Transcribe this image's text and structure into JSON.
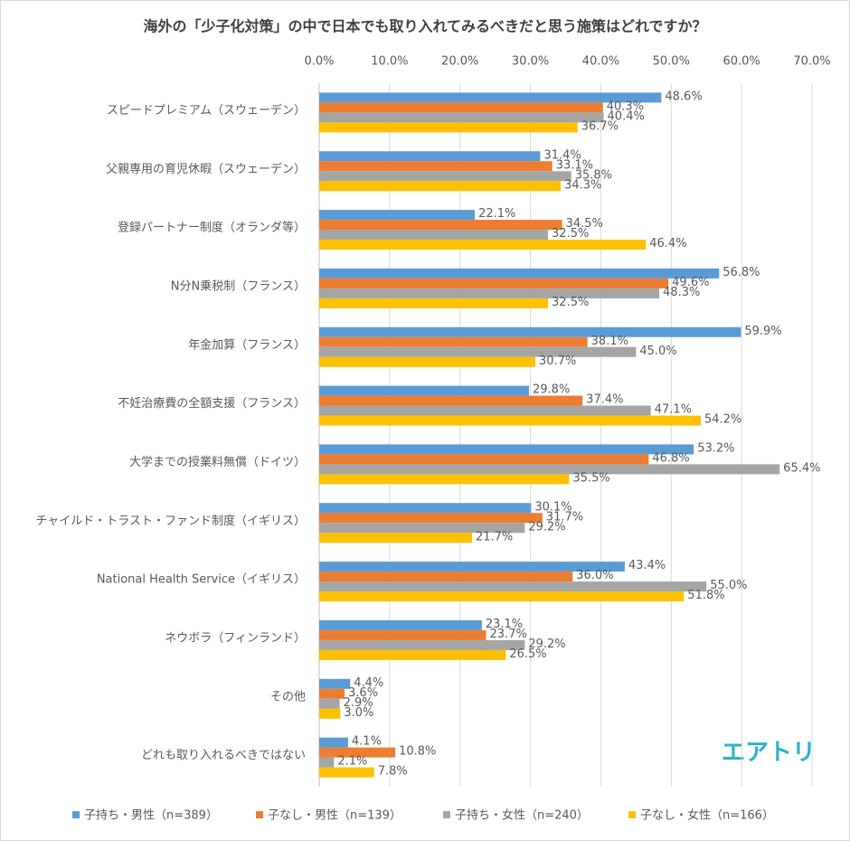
{
  "chart_data": {
    "type": "bar",
    "orientation": "horizontal",
    "title": "海外の「少子化対策」の中で日本でも取り入れてみるべきだと思う施策はどれですか？",
    "categories": [
      "スピードプレミアム（スウェーデン）",
      "父親専用の育児休暇（スウェーデン）",
      "登録パートナー制度（オランダ等）",
      "N分N乗税制（フランス）",
      "年金加算（フランス）",
      "不妊治療費の全額支援（フランス）",
      "大学までの授業料無償（ドイツ）",
      "チャイルド・トラスト・ファンド制度（イギリス）",
      "National Health Service（イギリス）",
      "ネウボラ（フィンランド）",
      "その他",
      "どれも取り入れるべきではない"
    ],
    "series": [
      {
        "name": "子持ち・男性（n=389）",
        "color": "#5b9bd5",
        "values": [
          48.6,
          31.4,
          22.1,
          56.8,
          59.9,
          29.8,
          53.2,
          30.1,
          43.4,
          23.1,
          4.4,
          4.1
        ],
        "value_labels": [
          "48.6%",
          "31.4%",
          "22.1%",
          "56.8%",
          "59.9%",
          "29.8%",
          "53.2%",
          "30.1%",
          "43.4%",
          "23.1%",
          "4.4%",
          "4.1%"
        ]
      },
      {
        "name": "子なし・男性（n=139）",
        "color": "#ed7d31",
        "values": [
          40.3,
          33.1,
          34.5,
          49.6,
          38.1,
          37.4,
          46.8,
          31.7,
          36.0,
          23.7,
          3.6,
          10.8
        ],
        "value_labels": [
          "40.3%",
          "33.1%",
          "34.5%",
          "49.6%",
          "38.1%",
          "37.4%",
          "46.8%",
          "31.7%",
          "36.0%",
          "23.7%",
          "3.6%",
          "10.8%"
        ]
      },
      {
        "name": "子持ち・女性（n=240）",
        "color": "#a5a5a5",
        "values": [
          40.4,
          35.8,
          32.5,
          48.3,
          45.0,
          47.1,
          65.4,
          29.2,
          55.0,
          29.2,
          2.9,
          2.1
        ],
        "value_labels": [
          "40.4%",
          "35.8%",
          "32.5%",
          "48.3%",
          "45.0%",
          "47.1%",
          "65.4%",
          "29.2%",
          "55.0%",
          "29.2%",
          "2.9%",
          "2.1%"
        ]
      },
      {
        "name": "子なし・女性（n=166）",
        "color": "#ffc000",
        "values": [
          36.7,
          34.3,
          46.4,
          32.5,
          30.7,
          54.2,
          35.5,
          21.7,
          51.8,
          26.5,
          3.0,
          7.8
        ],
        "value_labels": [
          "36.7%",
          "34.3%",
          "46.4%",
          "32.5%",
          "30.7%",
          "54.2%",
          "35.5%",
          "21.7%",
          "51.8%",
          "26.5%",
          "3.0%",
          "7.8%"
        ]
      }
    ],
    "xlim": [
      0,
      70
    ],
    "xticks": [
      {
        "value": 0,
        "label": "0.0%"
      },
      {
        "value": 10,
        "label": "10.0%"
      },
      {
        "value": 20,
        "label": "20.0%"
      },
      {
        "value": 30,
        "label": "30.0%"
      },
      {
        "value": 40,
        "label": "40.0%"
      },
      {
        "value": 50,
        "label": "50.0%"
      },
      {
        "value": 60,
        "label": "60.0%"
      },
      {
        "value": 70,
        "label": "70.0%"
      }
    ],
    "grid": true,
    "legend": "bottom",
    "logo": "エアトリ"
  }
}
